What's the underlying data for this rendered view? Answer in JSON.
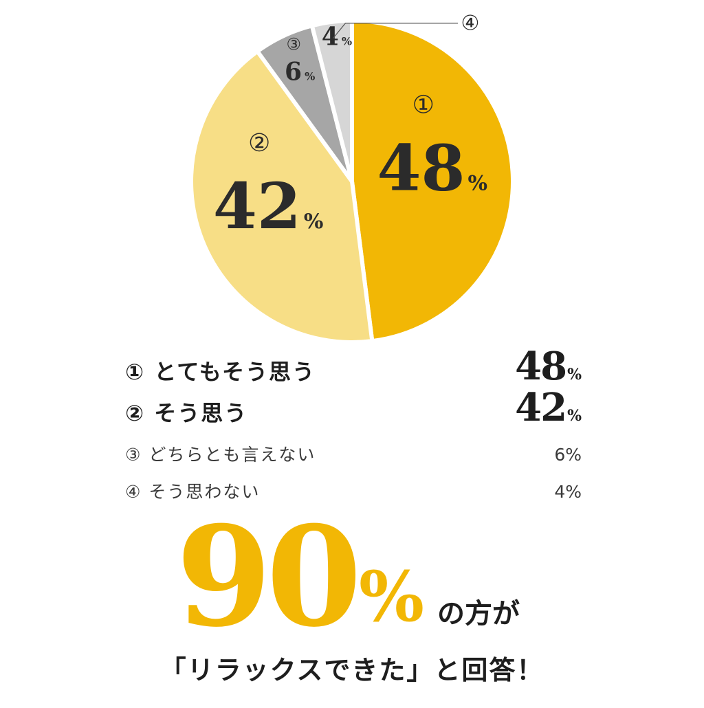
{
  "chart_data": {
    "type": "pie",
    "categories": [
      "とてもそう思う",
      "そう思う",
      "どちらとも言えない",
      "そう思わない"
    ],
    "values": [
      48,
      42,
      6,
      4
    ],
    "indices": [
      "①",
      "②",
      "③",
      "④"
    ],
    "unit": "%",
    "colors": [
      "#f2b705",
      "#f7de86",
      "#a6a6a6",
      "#d6d6d6"
    ]
  },
  "legend": [
    {
      "index": "①",
      "label": "とてもそう思う",
      "value": "48",
      "unit": "%"
    },
    {
      "index": "②",
      "label": "そう思う",
      "value": "42",
      "unit": "%"
    },
    {
      "index": "③",
      "label": "どちらとも言えない",
      "value": "6",
      "unit": "%"
    },
    {
      "index": "④",
      "label": "そう思わない",
      "value": "4",
      "unit": "%"
    }
  ],
  "headline": {
    "value": "90",
    "unit": "%",
    "suffix": "の方が",
    "answer": "「リラックスできた」と回答！"
  },
  "colors": {
    "accent": "#f2b705",
    "text": "#1e1e1e"
  }
}
